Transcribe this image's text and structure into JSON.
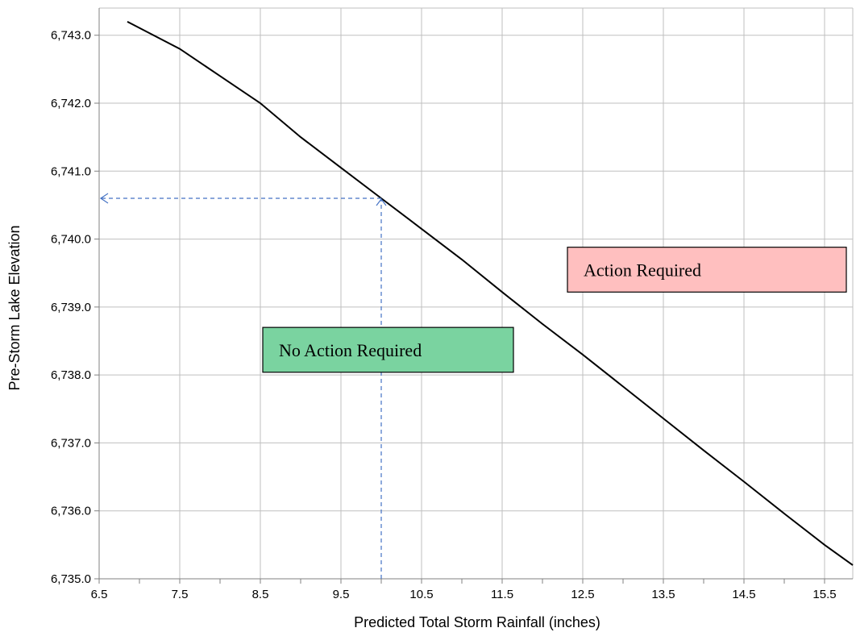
{
  "chart_data": {
    "type": "line",
    "title": "",
    "xlabel": "Predicted Total Storm Rainfall (inches)",
    "ylabel": "Pre-Storm Lake Elevation",
    "xlim": [
      6.5,
      15.85
    ],
    "ylim": [
      6735.0,
      6743.4
    ],
    "x_ticks": [
      6.5,
      7.5,
      8.5,
      9.5,
      10.5,
      11.5,
      12.5,
      13.5,
      14.5,
      15.5
    ],
    "x_tick_labels": [
      "6.5",
      "7.5",
      "8.5",
      "9.5",
      "10.5",
      "11.5",
      "12.5",
      "13.5",
      "14.5",
      "15.5"
    ],
    "x_minor_ticks": [
      7.0,
      8.0,
      9.0,
      10.0,
      11.0,
      12.0,
      13.0,
      14.0,
      15.0
    ],
    "y_ticks": [
      6735.0,
      6736.0,
      6737.0,
      6738.0,
      6739.0,
      6740.0,
      6741.0,
      6742.0,
      6743.0
    ],
    "y_tick_labels": [
      "6,735.0",
      "6,736.0",
      "6,737.0",
      "6,738.0",
      "6,739.0",
      "6,740.0",
      "6,741.0",
      "6,742.0",
      "6,743.0"
    ],
    "grid": true,
    "legend": "none",
    "series": [
      {
        "color": "#000000",
        "x": [
          6.85,
          7.5,
          8.0,
          8.5,
          9.0,
          9.5,
          10.0,
          10.5,
          11.0,
          11.5,
          12.0,
          12.5,
          13.0,
          13.5,
          14.0,
          14.5,
          15.0,
          15.5,
          15.85
        ],
        "y": [
          6743.2,
          6742.8,
          6742.4,
          6742.0,
          6741.5,
          6741.05,
          6740.6,
          6740.15,
          6739.7,
          6739.22,
          6738.75,
          6738.3,
          6737.83,
          6737.36,
          6736.89,
          6736.43,
          6735.96,
          6735.5,
          6735.2
        ]
      }
    ],
    "reference_lines": {
      "color": "#4472c4",
      "x": 10.0,
      "y": 6740.6
    },
    "annotations": [
      {
        "text": "No Action Required",
        "fill": "#7ad3a0",
        "x0": 8.53,
        "x1": 11.64,
        "y0": 6738.04,
        "y1": 6738.7
      },
      {
        "text": "Action Required",
        "fill": "#ffbfbf",
        "x0": 12.31,
        "x1": 15.77,
        "y0": 6739.22,
        "y1": 6739.88
      }
    ]
  }
}
